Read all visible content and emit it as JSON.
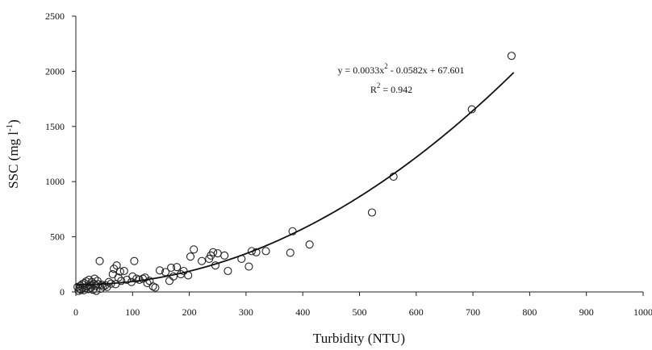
{
  "chart_data": {
    "type": "scatter",
    "title": "",
    "xlabel": "Turbidity (NTU)",
    "ylabel_parts": {
      "main": "SSC (mg l",
      "exp": "-1",
      "close": ")"
    },
    "xlim": [
      0,
      1000
    ],
    "ylim": [
      0,
      2500
    ],
    "xticks": [
      "0",
      "100",
      "200",
      "300",
      "400",
      "500",
      "600",
      "700",
      "800",
      "900",
      "1000"
    ],
    "yticks": [
      "0",
      "500",
      "1000",
      "1500",
      "2000",
      "2500"
    ],
    "grid": false,
    "legend": "none",
    "points": [
      [
        3,
        45
      ],
      [
        5,
        10
      ],
      [
        7,
        30
      ],
      [
        8,
        55
      ],
      [
        9,
        20
      ],
      [
        11,
        70
      ],
      [
        12,
        40
      ],
      [
        14,
        15
      ],
      [
        15,
        80
      ],
      [
        17,
        35
      ],
      [
        18,
        95
      ],
      [
        20,
        50
      ],
      [
        22,
        25
      ],
      [
        23,
        110
      ],
      [
        25,
        60
      ],
      [
        27,
        40
      ],
      [
        28,
        90
      ],
      [
        30,
        20
      ],
      [
        32,
        75
      ],
      [
        33,
        120
      ],
      [
        35,
        55
      ],
      [
        36,
        10
      ],
      [
        38,
        100
      ],
      [
        40,
        70
      ],
      [
        42,
        280
      ],
      [
        44,
        30
      ],
      [
        46,
        65
      ],
      [
        48,
        50
      ],
      [
        52,
        60
      ],
      [
        55,
        45
      ],
      [
        58,
        90
      ],
      [
        62,
        75
      ],
      [
        65,
        160
      ],
      [
        67,
        210
      ],
      [
        70,
        70
      ],
      [
        72,
        240
      ],
      [
        75,
        130
      ],
      [
        78,
        185
      ],
      [
        80,
        100
      ],
      [
        85,
        190
      ],
      [
        90,
        110
      ],
      [
        98,
        90
      ],
      [
        100,
        140
      ],
      [
        103,
        280
      ],
      [
        107,
        120
      ],
      [
        112,
        110
      ],
      [
        118,
        120
      ],
      [
        122,
        130
      ],
      [
        126,
        80
      ],
      [
        130,
        100
      ],
      [
        136,
        50
      ],
      [
        140,
        40
      ],
      [
        148,
        195
      ],
      [
        158,
        180
      ],
      [
        165,
        100
      ],
      [
        168,
        220
      ],
      [
        172,
        140
      ],
      [
        178,
        225
      ],
      [
        185,
        160
      ],
      [
        190,
        190
      ],
      [
        198,
        150
      ],
      [
        202,
        320
      ],
      [
        208,
        385
      ],
      [
        222,
        280
      ],
      [
        235,
        300
      ],
      [
        238,
        330
      ],
      [
        242,
        360
      ],
      [
        246,
        240
      ],
      [
        250,
        350
      ],
      [
        262,
        330
      ],
      [
        268,
        190
      ],
      [
        292,
        300
      ],
      [
        305,
        230
      ],
      [
        310,
        370
      ],
      [
        318,
        360
      ],
      [
        335,
        370
      ],
      [
        378,
        355
      ],
      [
        382,
        550
      ],
      [
        412,
        430
      ],
      [
        522,
        720
      ],
      [
        560,
        1045
      ],
      [
        698,
        1655
      ],
      [
        768,
        2140
      ]
    ],
    "fit_line": {
      "a": 0.0033,
      "b": -0.0582,
      "c": 67.601,
      "x_range": [
        0,
        772
      ]
    },
    "annotation": {
      "equation_parts": {
        "before": "y = 0.0033x",
        "exp": "2",
        "after": " - 0.0582x + 67.601"
      },
      "r2_parts": {
        "before": "R",
        "exp": "2",
        "after": " = 0.942"
      }
    }
  }
}
